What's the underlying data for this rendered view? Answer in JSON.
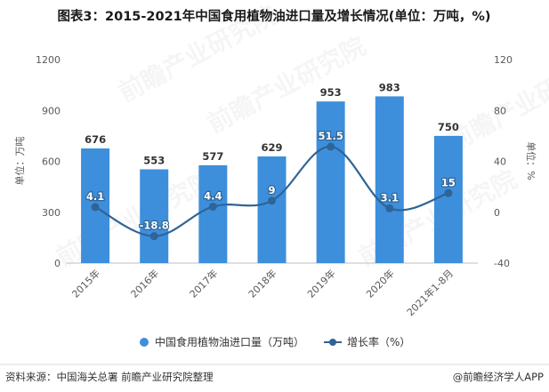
{
  "chart_data": {
    "type": "bar+line",
    "title": "图表3：2015-2021年中国食用植物油进口量及增长情况(单位：万吨，%)",
    "categories": [
      "2015年",
      "2016年",
      "2017年",
      "2018年",
      "2019年",
      "2020年",
      "2021年1-8月"
    ],
    "series": [
      {
        "name": "中国食用植物油进口量（万吨）",
        "type": "bar",
        "axis": "left",
        "color": "#3d8fdc",
        "values": [
          676,
          553,
          577,
          629,
          953,
          983,
          750
        ]
      },
      {
        "name": "增长率（%）",
        "type": "line",
        "axis": "right",
        "color": "#2f6496",
        "values": [
          4.1,
          -18.8,
          4.4,
          9,
          51.5,
          3.1,
          15
        ]
      }
    ],
    "ylabel": "单位：万吨",
    "y2label": "单位：%",
    "ylim": [
      0,
      1200
    ],
    "yticks": [
      0,
      300,
      600,
      900,
      1200
    ],
    "y2lim": [
      -40,
      120
    ],
    "y2ticks": [
      -40,
      0,
      40,
      80,
      120
    ],
    "legend_position": "bottom",
    "grid": false
  },
  "footer": {
    "source": "资料来源：中国海关总署 前瞻产业研究院整理",
    "brand": "@前瞻经济学人APP"
  },
  "watermark_text": "前瞻产业研究院"
}
